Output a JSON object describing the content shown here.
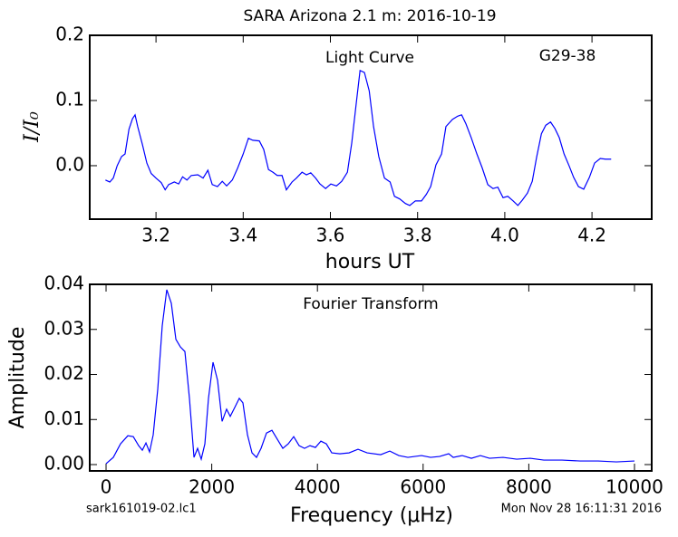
{
  "title": "SARA Arizona 2.1 m:  2016-10-19",
  "footer": {
    "left": "sark161019-02.lc1",
    "right": "Mon Nov 28 16:11:31 2016"
  },
  "chart_data": [
    {
      "type": "line",
      "xlabel": "hours UT",
      "ylabel": "I/I₀",
      "annotations": [
        "Light Curve",
        "G29-38"
      ],
      "xlim": [
        3.048,
        4.337
      ],
      "ylim": [
        -0.082,
        0.2
      ],
      "xticks": [
        3.2,
        3.4,
        3.6,
        3.8,
        {
          "value": 4.0,
          "label": "4.0"
        },
        4.2
      ],
      "yticks": [
        {
          "value": 0,
          "label": "0.0"
        },
        0.1,
        0.2
      ],
      "x": [
        3.084,
        3.094,
        3.102,
        3.111,
        3.121,
        3.129,
        3.138,
        3.146,
        3.152,
        3.158,
        3.169,
        3.179,
        3.189,
        3.2,
        3.212,
        3.221,
        3.229,
        3.242,
        3.252,
        3.261,
        3.271,
        3.281,
        3.296,
        3.308,
        3.319,
        3.329,
        3.341,
        3.352,
        3.362,
        3.375,
        3.387,
        3.4,
        3.412,
        3.422,
        3.437,
        3.447,
        3.458,
        3.468,
        3.478,
        3.489,
        3.499,
        3.512,
        3.522,
        3.535,
        3.545,
        3.555,
        3.566,
        3.576,
        3.589,
        3.601,
        3.614,
        3.626,
        3.639,
        3.649,
        3.659,
        3.668,
        3.678,
        3.689,
        3.699,
        3.711,
        3.724,
        3.737,
        3.747,
        3.759,
        3.772,
        3.782,
        3.795,
        3.809,
        3.82,
        3.83,
        3.842,
        3.855,
        3.865,
        3.88,
        3.892,
        3.901,
        3.911,
        3.923,
        3.936,
        3.948,
        3.961,
        3.973,
        3.984,
        3.996,
        4.007,
        4.019,
        4.03,
        4.04,
        4.052,
        4.063,
        4.073,
        4.084,
        4.094,
        4.105,
        4.115,
        4.125,
        4.136,
        4.148,
        4.158,
        4.169,
        4.181,
        4.194,
        4.206,
        4.219,
        4.231,
        4.244
      ],
      "series": [
        {
          "color": "#0000ff",
          "values": [
            -0.022,
            -0.025,
            -0.019,
            0.0,
            0.014,
            0.018,
            0.056,
            0.072,
            0.078,
            0.06,
            0.032,
            0.004,
            -0.012,
            -0.019,
            -0.026,
            -0.037,
            -0.029,
            -0.025,
            -0.028,
            -0.017,
            -0.022,
            -0.015,
            -0.014,
            -0.019,
            -0.007,
            -0.029,
            -0.032,
            -0.024,
            -0.031,
            -0.022,
            -0.004,
            0.018,
            0.042,
            0.039,
            0.038,
            0.025,
            -0.006,
            -0.01,
            -0.015,
            -0.015,
            -0.037,
            -0.025,
            -0.019,
            -0.01,
            -0.014,
            -0.011,
            -0.019,
            -0.028,
            -0.035,
            -0.028,
            -0.031,
            -0.024,
            -0.01,
            0.035,
            0.094,
            0.146,
            0.143,
            0.115,
            0.06,
            0.014,
            -0.019,
            -0.025,
            -0.047,
            -0.051,
            -0.058,
            -0.061,
            -0.054,
            -0.054,
            -0.044,
            -0.032,
            0.001,
            0.018,
            0.06,
            0.071,
            0.076,
            0.078,
            0.064,
            0.043,
            0.018,
            -0.003,
            -0.029,
            -0.035,
            -0.033,
            -0.049,
            -0.047,
            -0.054,
            -0.061,
            -0.053,
            -0.042,
            -0.024,
            0.013,
            0.049,
            0.062,
            0.067,
            0.057,
            0.043,
            0.018,
            -0.001,
            -0.018,
            -0.032,
            -0.036,
            -0.018,
            0.004,
            0.011,
            0.01,
            0.01
          ]
        }
      ]
    },
    {
      "type": "line",
      "xlabel": "Frequency (μHz)",
      "ylabel": "Amplitude",
      "annotations": [
        "Fourier Transform"
      ],
      "xlim": [
        -309,
        10326
      ],
      "ylim": [
        -0.0014,
        0.04
      ],
      "xticks": [
        0,
        2000,
        4000,
        6000,
        8000,
        10000
      ],
      "yticks": [
        {
          "value": 0,
          "label": "0.00"
        },
        {
          "value": 0.01,
          "label": "0.01"
        },
        {
          "value": 0.02,
          "label": "0.02"
        },
        {
          "value": 0.03,
          "label": "0.03"
        },
        {
          "value": 0.04,
          "label": "0.04"
        }
      ],
      "x": [
        0,
        137,
        274,
        412,
        515,
        617,
        686,
        755,
        823,
        892,
        978,
        1063,
        1149,
        1235,
        1321,
        1407,
        1492,
        1578,
        1664,
        1732,
        1801,
        1870,
        1938,
        2024,
        2110,
        2196,
        2281,
        2350,
        2436,
        2521,
        2590,
        2676,
        2762,
        2847,
        2933,
        3036,
        3139,
        3242,
        3345,
        3448,
        3551,
        3654,
        3756,
        3859,
        3962,
        4065,
        4168,
        4271,
        4425,
        4597,
        4768,
        4940,
        5197,
        5369,
        5540,
        5712,
        5969,
        6141,
        6312,
        6484,
        6570,
        6741,
        6913,
        7084,
        7256,
        7513,
        7770,
        8027,
        8285,
        8628,
        8971,
        9314,
        9657,
        10000
      ],
      "series": [
        {
          "color": "#0000ff",
          "values": [
            0.0002,
            0.0016,
            0.0046,
            0.0064,
            0.0062,
            0.0042,
            0.0032,
            0.0048,
            0.0028,
            0.0066,
            0.0167,
            0.0308,
            0.0388,
            0.0358,
            0.0278,
            0.0261,
            0.0251,
            0.0147,
            0.0016,
            0.0036,
            0.0012,
            0.0046,
            0.0147,
            0.0227,
            0.0187,
            0.0096,
            0.0123,
            0.0107,
            0.0127,
            0.0147,
            0.0137,
            0.0066,
            0.0026,
            0.0016,
            0.0036,
            0.007,
            0.0076,
            0.0056,
            0.0036,
            0.0046,
            0.0062,
            0.0042,
            0.0036,
            0.0042,
            0.0038,
            0.0052,
            0.0046,
            0.0026,
            0.0024,
            0.0026,
            0.0034,
            0.0026,
            0.0022,
            0.003,
            0.002,
            0.0016,
            0.002,
            0.0016,
            0.0018,
            0.0024,
            0.0016,
            0.002,
            0.0014,
            0.002,
            0.0014,
            0.0016,
            0.0012,
            0.0014,
            0.001,
            0.001,
            0.0008,
            0.0008,
            0.0006,
            0.0008
          ]
        }
      ]
    }
  ]
}
